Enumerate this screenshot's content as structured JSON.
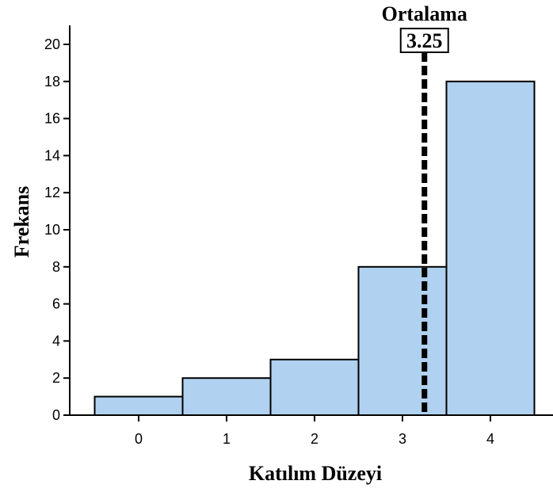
{
  "chart_data": {
    "type": "bar",
    "categories": [
      "0",
      "1",
      "2",
      "3",
      "4"
    ],
    "values": [
      1,
      2,
      3,
      8,
      18
    ],
    "xlabel": "Katılım Düzeyi",
    "ylabel": "Frekans",
    "ylim": [
      0,
      21
    ],
    "yticks": [
      "0",
      "2",
      "4",
      "6",
      "8",
      "10",
      "12",
      "14",
      "16",
      "18",
      "20"
    ],
    "mean": {
      "label": "Ortalama",
      "value": 3.25,
      "value_text": "3.25"
    },
    "bar_color": "#b0d1ef",
    "bar_stroke": "#000000",
    "grid": false
  }
}
